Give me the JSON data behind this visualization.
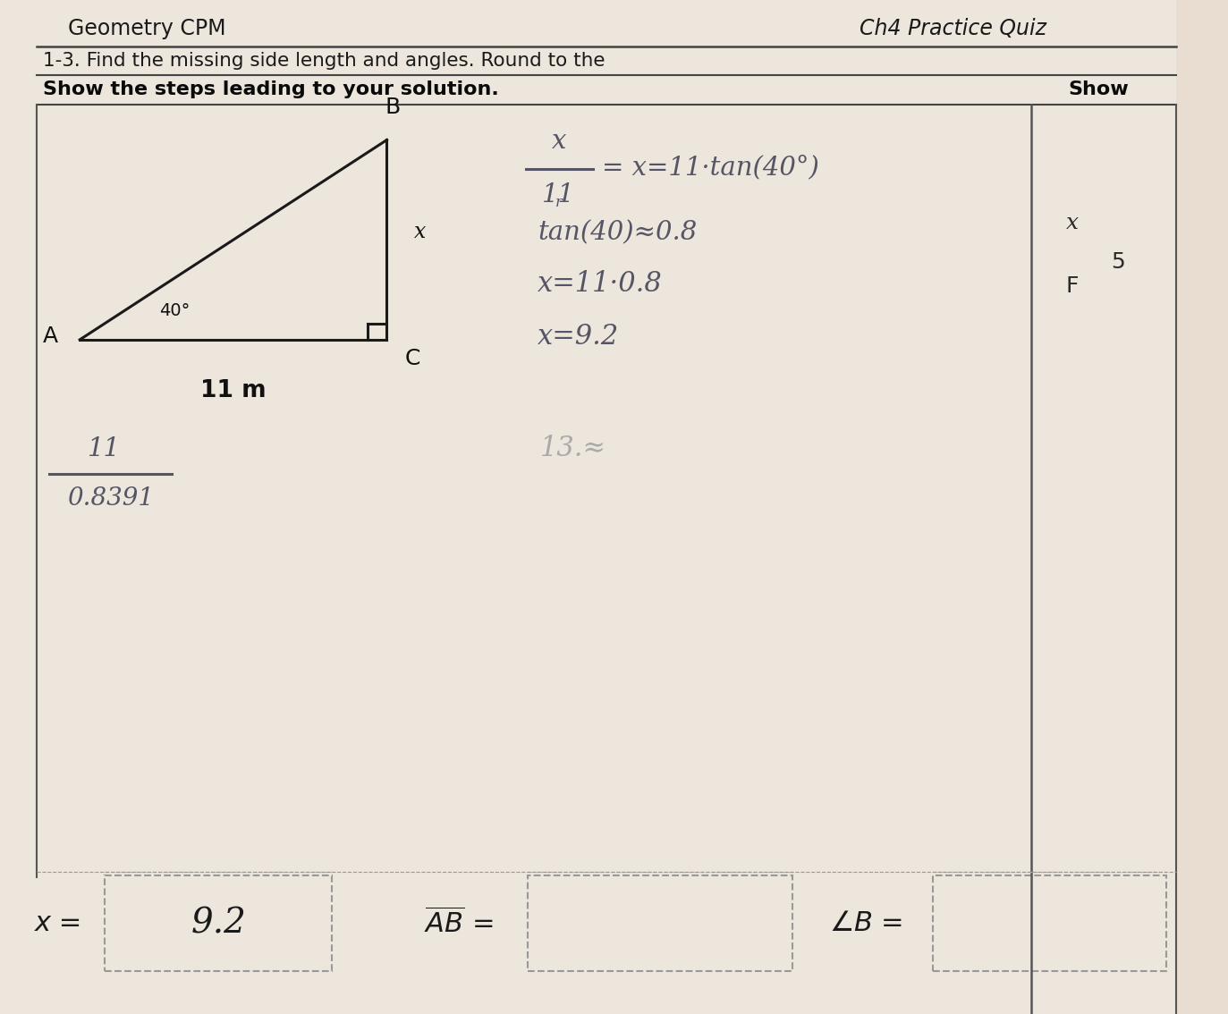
{
  "page_bg": "#e8ddd0",
  "main_bg": "#ede8e0",
  "title_left": "Geometry CPM",
  "title_right": "Ch4 Practice Quiz",
  "subtitle1": "1-3. Find the missing side length and angles. Round to the",
  "subtitle2_bold": "Show the steps leading to your solution.",
  "subtitle2_right": "Show",
  "tri_A": [
    0.065,
    0.665
  ],
  "tri_B": [
    0.315,
    0.862
  ],
  "tri_C": [
    0.315,
    0.665
  ],
  "label_A": "A",
  "label_B": "B",
  "label_C": "C",
  "angle_label": "40°",
  "side_label": "11 m",
  "side_x_label": "x",
  "hw_color": "#555566",
  "hw_color2": "#888899",
  "ans_box_color": "#ccbbaa",
  "x_answer": "9.2"
}
